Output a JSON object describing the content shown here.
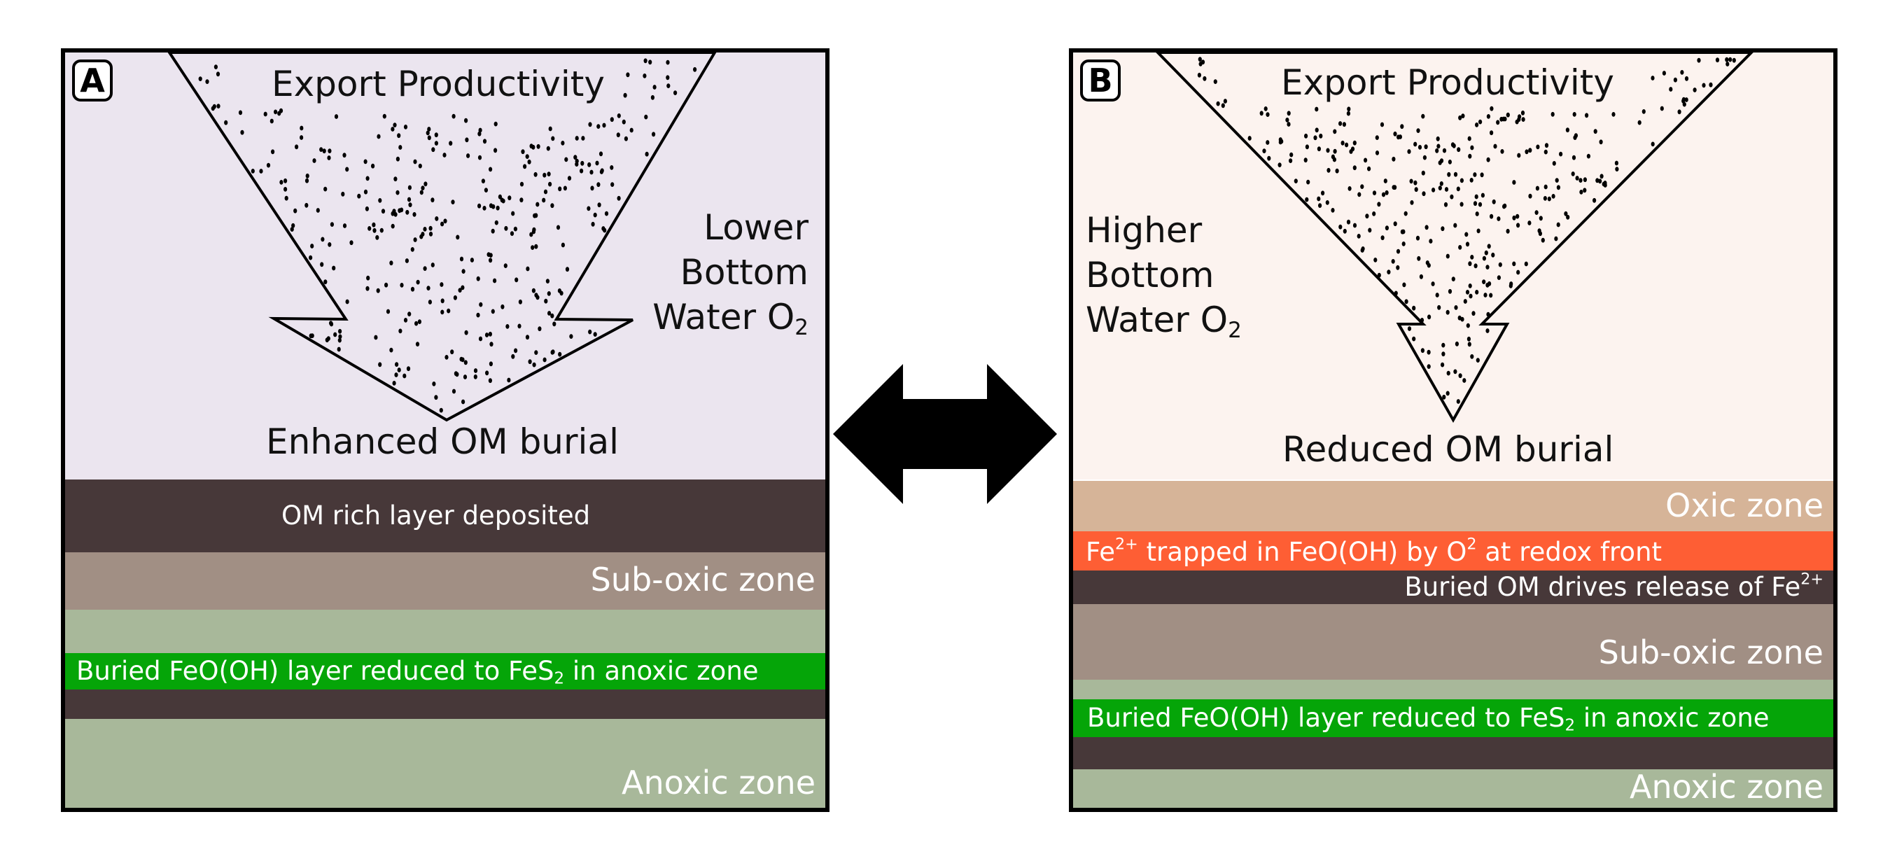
{
  "colors": {
    "panel_a_sky": "#ebe5ef",
    "panel_b_sky": "#fcf3ef",
    "om_layer": "#473839",
    "sub_oxic": "#a18f84",
    "anoxic": "#a8b89a",
    "feooh_green": "#05a508",
    "oxic": "#d6b498",
    "redox_orange": "#fe5e34"
  },
  "panel_a": {
    "letter": "A",
    "title": "Export Productivity",
    "o2_lines": [
      "Lower",
      "Bottom",
      "Water O"
    ],
    "o2_subscript": "2",
    "burial": "Enhanced OM burial",
    "om_layer": "OM rich layer deposited",
    "sub_oxic": "Sub-oxic zone",
    "feooh_prefix": "Buried FeO(OH) layer reduced to FeS",
    "feooh_sub": "2",
    "feooh_suffix": " in anoxic zone",
    "anoxic": "Anoxic zone"
  },
  "panel_b": {
    "letter": "B",
    "title": "Export Productivity",
    "o2_lines": [
      "Higher",
      "Bottom",
      "Water O"
    ],
    "o2_subscript": "2",
    "burial": "Reduced OM burial",
    "oxic": "Oxic zone",
    "fe_trap_a": "Fe",
    "fe_trap_sup": "2+",
    "fe_trap_b": " trapped in FeO(OH) by O",
    "fe_trap_sup2": "2",
    "fe_trap_c": " at redox front",
    "release_a": "Buried OM drives release of Fe",
    "release_sup": "2+",
    "sub_oxic": "Sub-oxic zone",
    "feooh_prefix": "Buried FeO(OH) layer reduced to FeS",
    "feooh_sub": "2",
    "feooh_suffix": " in anoxic zone",
    "anoxic": "Anoxic zone"
  }
}
